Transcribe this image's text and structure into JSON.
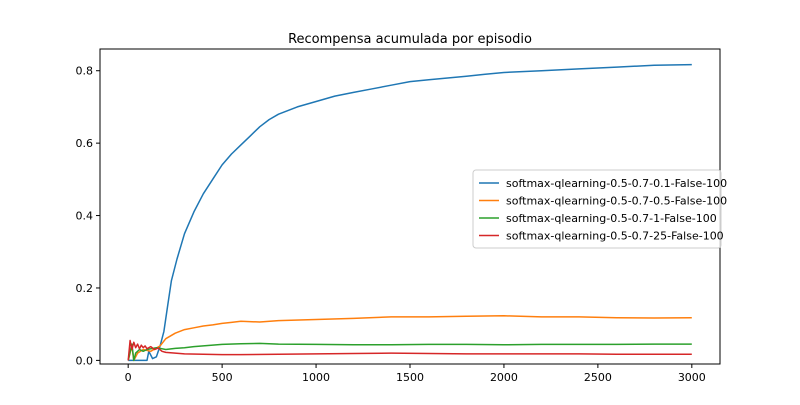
{
  "chart_data": {
    "type": "line",
    "title": "Recompensa acumulada por episodio",
    "xlabel": "",
    "ylabel": "",
    "xlim": [
      -150,
      3150
    ],
    "ylim": [
      -0.01,
      0.86
    ],
    "x_ticks": [
      0,
      500,
      1000,
      1500,
      2000,
      2500,
      3000
    ],
    "x_tick_labels": [
      "0",
      "500",
      "1000",
      "1500",
      "2000",
      "2500",
      "3000"
    ],
    "y_ticks": [
      0.0,
      0.2,
      0.4,
      0.6,
      0.8
    ],
    "y_tick_labels": [
      "0.0",
      "0.2",
      "0.4",
      "0.6",
      "0.8"
    ],
    "grid": false,
    "legend_position": "center-right",
    "series": [
      {
        "name": "softmax-qlearning-0.5-0.7-0.1-False-100",
        "color": "#1f77b4",
        "x": [
          0,
          100,
          110,
          130,
          150,
          170,
          190,
          210,
          230,
          260,
          300,
          350,
          400,
          450,
          500,
          550,
          600,
          650,
          700,
          750,
          800,
          900,
          1000,
          1100,
          1200,
          1300,
          1400,
          1500,
          1600,
          1700,
          1800,
          1900,
          2000,
          2200,
          2400,
          2600,
          2800,
          3000
        ],
        "y": [
          0.0,
          0.0,
          0.025,
          0.005,
          0.01,
          0.04,
          0.08,
          0.15,
          0.22,
          0.28,
          0.35,
          0.41,
          0.46,
          0.5,
          0.54,
          0.57,
          0.595,
          0.62,
          0.645,
          0.665,
          0.68,
          0.7,
          0.715,
          0.73,
          0.74,
          0.75,
          0.76,
          0.77,
          0.775,
          0.78,
          0.785,
          0.79,
          0.795,
          0.8,
          0.805,
          0.81,
          0.815,
          0.817
        ]
      },
      {
        "name": "softmax-qlearning-0.5-0.7-0.5-False-100",
        "color": "#ff7f0e",
        "x": [
          0,
          20,
          30,
          50,
          80,
          120,
          170,
          200,
          250,
          300,
          350,
          400,
          450,
          500,
          550,
          600,
          700,
          800,
          1000,
          1200,
          1400,
          1600,
          1800,
          2000,
          2200,
          2400,
          2600,
          2800,
          3000
        ],
        "y": [
          0.0,
          0.04,
          0.0,
          0.02,
          0.03,
          0.025,
          0.04,
          0.06,
          0.075,
          0.085,
          0.09,
          0.095,
          0.098,
          0.102,
          0.105,
          0.108,
          0.106,
          0.11,
          0.113,
          0.116,
          0.12,
          0.12,
          0.122,
          0.123,
          0.12,
          0.12,
          0.118,
          0.117,
          0.118
        ]
      },
      {
        "name": "softmax-qlearning-0.5-0.7-1-False-100",
        "color": "#2ca02c",
        "x": [
          0,
          20,
          30,
          40,
          60,
          80,
          100,
          150,
          200,
          250,
          300,
          350,
          400,
          500,
          600,
          700,
          800,
          1000,
          1200,
          1400,
          1600,
          1800,
          2000,
          2200,
          2400,
          2600,
          2800,
          3000
        ],
        "y": [
          0.0,
          0.045,
          0.0,
          0.02,
          0.03,
          0.025,
          0.03,
          0.035,
          0.03,
          0.033,
          0.035,
          0.038,
          0.04,
          0.044,
          0.046,
          0.047,
          0.045,
          0.044,
          0.043,
          0.043,
          0.044,
          0.044,
          0.043,
          0.044,
          0.044,
          0.044,
          0.045,
          0.045
        ]
      },
      {
        "name": "softmax-qlearning-0.5-0.7-25-False-100",
        "color": "#d62728",
        "x": [
          0,
          10,
          20,
          30,
          40,
          50,
          60,
          70,
          80,
          90,
          100,
          120,
          140,
          160,
          180,
          200,
          250,
          300,
          400,
          500,
          600,
          800,
          1000,
          1200,
          1400,
          1600,
          1800,
          2000,
          2200,
          2400,
          2600,
          2800,
          3000
        ],
        "y": [
          0.0,
          0.055,
          0.03,
          0.05,
          0.035,
          0.045,
          0.032,
          0.042,
          0.035,
          0.04,
          0.032,
          0.038,
          0.03,
          0.034,
          0.025,
          0.022,
          0.02,
          0.018,
          0.017,
          0.016,
          0.016,
          0.017,
          0.018,
          0.019,
          0.02,
          0.019,
          0.018,
          0.018,
          0.018,
          0.018,
          0.017,
          0.017,
          0.017
        ]
      }
    ]
  }
}
